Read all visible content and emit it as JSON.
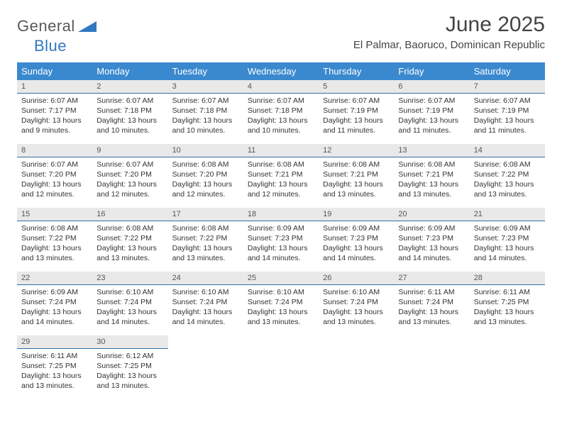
{
  "brand": {
    "text1": "General",
    "text2": "Blue",
    "color_general": "#5a5a5a",
    "color_blue": "#2f78c2",
    "triangle_color": "#2f78c2"
  },
  "title": "June 2025",
  "location": "El Palmar, Baoruco, Dominican Republic",
  "colors": {
    "header_bg": "#3a89cf",
    "header_text": "#ffffff",
    "daynum_bg": "#e9e9e9",
    "daynum_border": "#2f6fa8",
    "text": "#333333",
    "background": "#ffffff"
  },
  "weekdays": [
    "Sunday",
    "Monday",
    "Tuesday",
    "Wednesday",
    "Thursday",
    "Friday",
    "Saturday"
  ],
  "weeks": [
    [
      {
        "n": "1",
        "sr": "Sunrise: 6:07 AM",
        "ss": "Sunset: 7:17 PM",
        "d1": "Daylight: 13 hours",
        "d2": "and 9 minutes."
      },
      {
        "n": "2",
        "sr": "Sunrise: 6:07 AM",
        "ss": "Sunset: 7:18 PM",
        "d1": "Daylight: 13 hours",
        "d2": "and 10 minutes."
      },
      {
        "n": "3",
        "sr": "Sunrise: 6:07 AM",
        "ss": "Sunset: 7:18 PM",
        "d1": "Daylight: 13 hours",
        "d2": "and 10 minutes."
      },
      {
        "n": "4",
        "sr": "Sunrise: 6:07 AM",
        "ss": "Sunset: 7:18 PM",
        "d1": "Daylight: 13 hours",
        "d2": "and 10 minutes."
      },
      {
        "n": "5",
        "sr": "Sunrise: 6:07 AM",
        "ss": "Sunset: 7:19 PM",
        "d1": "Daylight: 13 hours",
        "d2": "and 11 minutes."
      },
      {
        "n": "6",
        "sr": "Sunrise: 6:07 AM",
        "ss": "Sunset: 7:19 PM",
        "d1": "Daylight: 13 hours",
        "d2": "and 11 minutes."
      },
      {
        "n": "7",
        "sr": "Sunrise: 6:07 AM",
        "ss": "Sunset: 7:19 PM",
        "d1": "Daylight: 13 hours",
        "d2": "and 11 minutes."
      }
    ],
    [
      {
        "n": "8",
        "sr": "Sunrise: 6:07 AM",
        "ss": "Sunset: 7:20 PM",
        "d1": "Daylight: 13 hours",
        "d2": "and 12 minutes."
      },
      {
        "n": "9",
        "sr": "Sunrise: 6:07 AM",
        "ss": "Sunset: 7:20 PM",
        "d1": "Daylight: 13 hours",
        "d2": "and 12 minutes."
      },
      {
        "n": "10",
        "sr": "Sunrise: 6:08 AM",
        "ss": "Sunset: 7:20 PM",
        "d1": "Daylight: 13 hours",
        "d2": "and 12 minutes."
      },
      {
        "n": "11",
        "sr": "Sunrise: 6:08 AM",
        "ss": "Sunset: 7:21 PM",
        "d1": "Daylight: 13 hours",
        "d2": "and 12 minutes."
      },
      {
        "n": "12",
        "sr": "Sunrise: 6:08 AM",
        "ss": "Sunset: 7:21 PM",
        "d1": "Daylight: 13 hours",
        "d2": "and 13 minutes."
      },
      {
        "n": "13",
        "sr": "Sunrise: 6:08 AM",
        "ss": "Sunset: 7:21 PM",
        "d1": "Daylight: 13 hours",
        "d2": "and 13 minutes."
      },
      {
        "n": "14",
        "sr": "Sunrise: 6:08 AM",
        "ss": "Sunset: 7:22 PM",
        "d1": "Daylight: 13 hours",
        "d2": "and 13 minutes."
      }
    ],
    [
      {
        "n": "15",
        "sr": "Sunrise: 6:08 AM",
        "ss": "Sunset: 7:22 PM",
        "d1": "Daylight: 13 hours",
        "d2": "and 13 minutes."
      },
      {
        "n": "16",
        "sr": "Sunrise: 6:08 AM",
        "ss": "Sunset: 7:22 PM",
        "d1": "Daylight: 13 hours",
        "d2": "and 13 minutes."
      },
      {
        "n": "17",
        "sr": "Sunrise: 6:08 AM",
        "ss": "Sunset: 7:22 PM",
        "d1": "Daylight: 13 hours",
        "d2": "and 13 minutes."
      },
      {
        "n": "18",
        "sr": "Sunrise: 6:09 AM",
        "ss": "Sunset: 7:23 PM",
        "d1": "Daylight: 13 hours",
        "d2": "and 14 minutes."
      },
      {
        "n": "19",
        "sr": "Sunrise: 6:09 AM",
        "ss": "Sunset: 7:23 PM",
        "d1": "Daylight: 13 hours",
        "d2": "and 14 minutes."
      },
      {
        "n": "20",
        "sr": "Sunrise: 6:09 AM",
        "ss": "Sunset: 7:23 PM",
        "d1": "Daylight: 13 hours",
        "d2": "and 14 minutes."
      },
      {
        "n": "21",
        "sr": "Sunrise: 6:09 AM",
        "ss": "Sunset: 7:23 PM",
        "d1": "Daylight: 13 hours",
        "d2": "and 14 minutes."
      }
    ],
    [
      {
        "n": "22",
        "sr": "Sunrise: 6:09 AM",
        "ss": "Sunset: 7:24 PM",
        "d1": "Daylight: 13 hours",
        "d2": "and 14 minutes."
      },
      {
        "n": "23",
        "sr": "Sunrise: 6:10 AM",
        "ss": "Sunset: 7:24 PM",
        "d1": "Daylight: 13 hours",
        "d2": "and 14 minutes."
      },
      {
        "n": "24",
        "sr": "Sunrise: 6:10 AM",
        "ss": "Sunset: 7:24 PM",
        "d1": "Daylight: 13 hours",
        "d2": "and 14 minutes."
      },
      {
        "n": "25",
        "sr": "Sunrise: 6:10 AM",
        "ss": "Sunset: 7:24 PM",
        "d1": "Daylight: 13 hours",
        "d2": "and 13 minutes."
      },
      {
        "n": "26",
        "sr": "Sunrise: 6:10 AM",
        "ss": "Sunset: 7:24 PM",
        "d1": "Daylight: 13 hours",
        "d2": "and 13 minutes."
      },
      {
        "n": "27",
        "sr": "Sunrise: 6:11 AM",
        "ss": "Sunset: 7:24 PM",
        "d1": "Daylight: 13 hours",
        "d2": "and 13 minutes."
      },
      {
        "n": "28",
        "sr": "Sunrise: 6:11 AM",
        "ss": "Sunset: 7:25 PM",
        "d1": "Daylight: 13 hours",
        "d2": "and 13 minutes."
      }
    ],
    [
      {
        "n": "29",
        "sr": "Sunrise: 6:11 AM",
        "ss": "Sunset: 7:25 PM",
        "d1": "Daylight: 13 hours",
        "d2": "and 13 minutes."
      },
      {
        "n": "30",
        "sr": "Sunrise: 6:12 AM",
        "ss": "Sunset: 7:25 PM",
        "d1": "Daylight: 13 hours",
        "d2": "and 13 minutes."
      },
      null,
      null,
      null,
      null,
      null
    ]
  ]
}
